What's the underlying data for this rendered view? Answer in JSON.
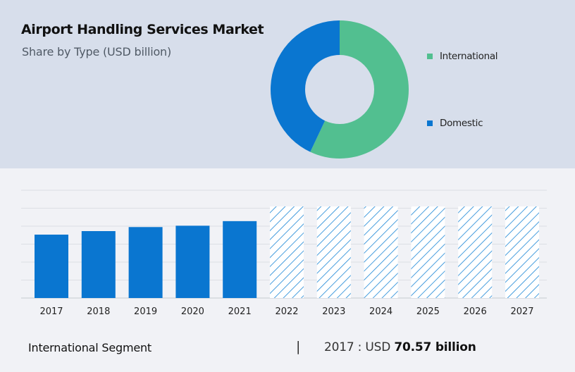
{
  "chart_data": [
    {
      "type": "pie",
      "title": "Airport Handling Services Market",
      "subtitle": "Share by Type (USD billion)",
      "legend_position": "right",
      "slices": [
        {
          "name": "International",
          "value": 57,
          "color": "#52bf90"
        },
        {
          "name": "Domestic",
          "value": 43,
          "color": "#0a76d0"
        }
      ]
    },
    {
      "type": "bar",
      "categories": [
        "2017",
        "2018",
        "2019",
        "2020",
        "2021",
        "2022",
        "2023",
        "2024",
        "2025",
        "2026",
        "2027"
      ],
      "values": [
        70.57,
        74.5,
        79.0,
        80.5,
        85.6,
        null,
        null,
        null,
        null,
        null,
        null
      ],
      "forecast_categories": [
        "2022",
        "2023",
        "2024",
        "2025",
        "2026",
        "2027"
      ],
      "ylim": [
        0,
        120
      ],
      "grid": true,
      "bar_color": "#0a76d0"
    }
  ],
  "footer": {
    "segment_label": "International Segment",
    "separator": "|",
    "year_prefix": "2017 :  USD ",
    "value_text": "70.57 billion"
  }
}
